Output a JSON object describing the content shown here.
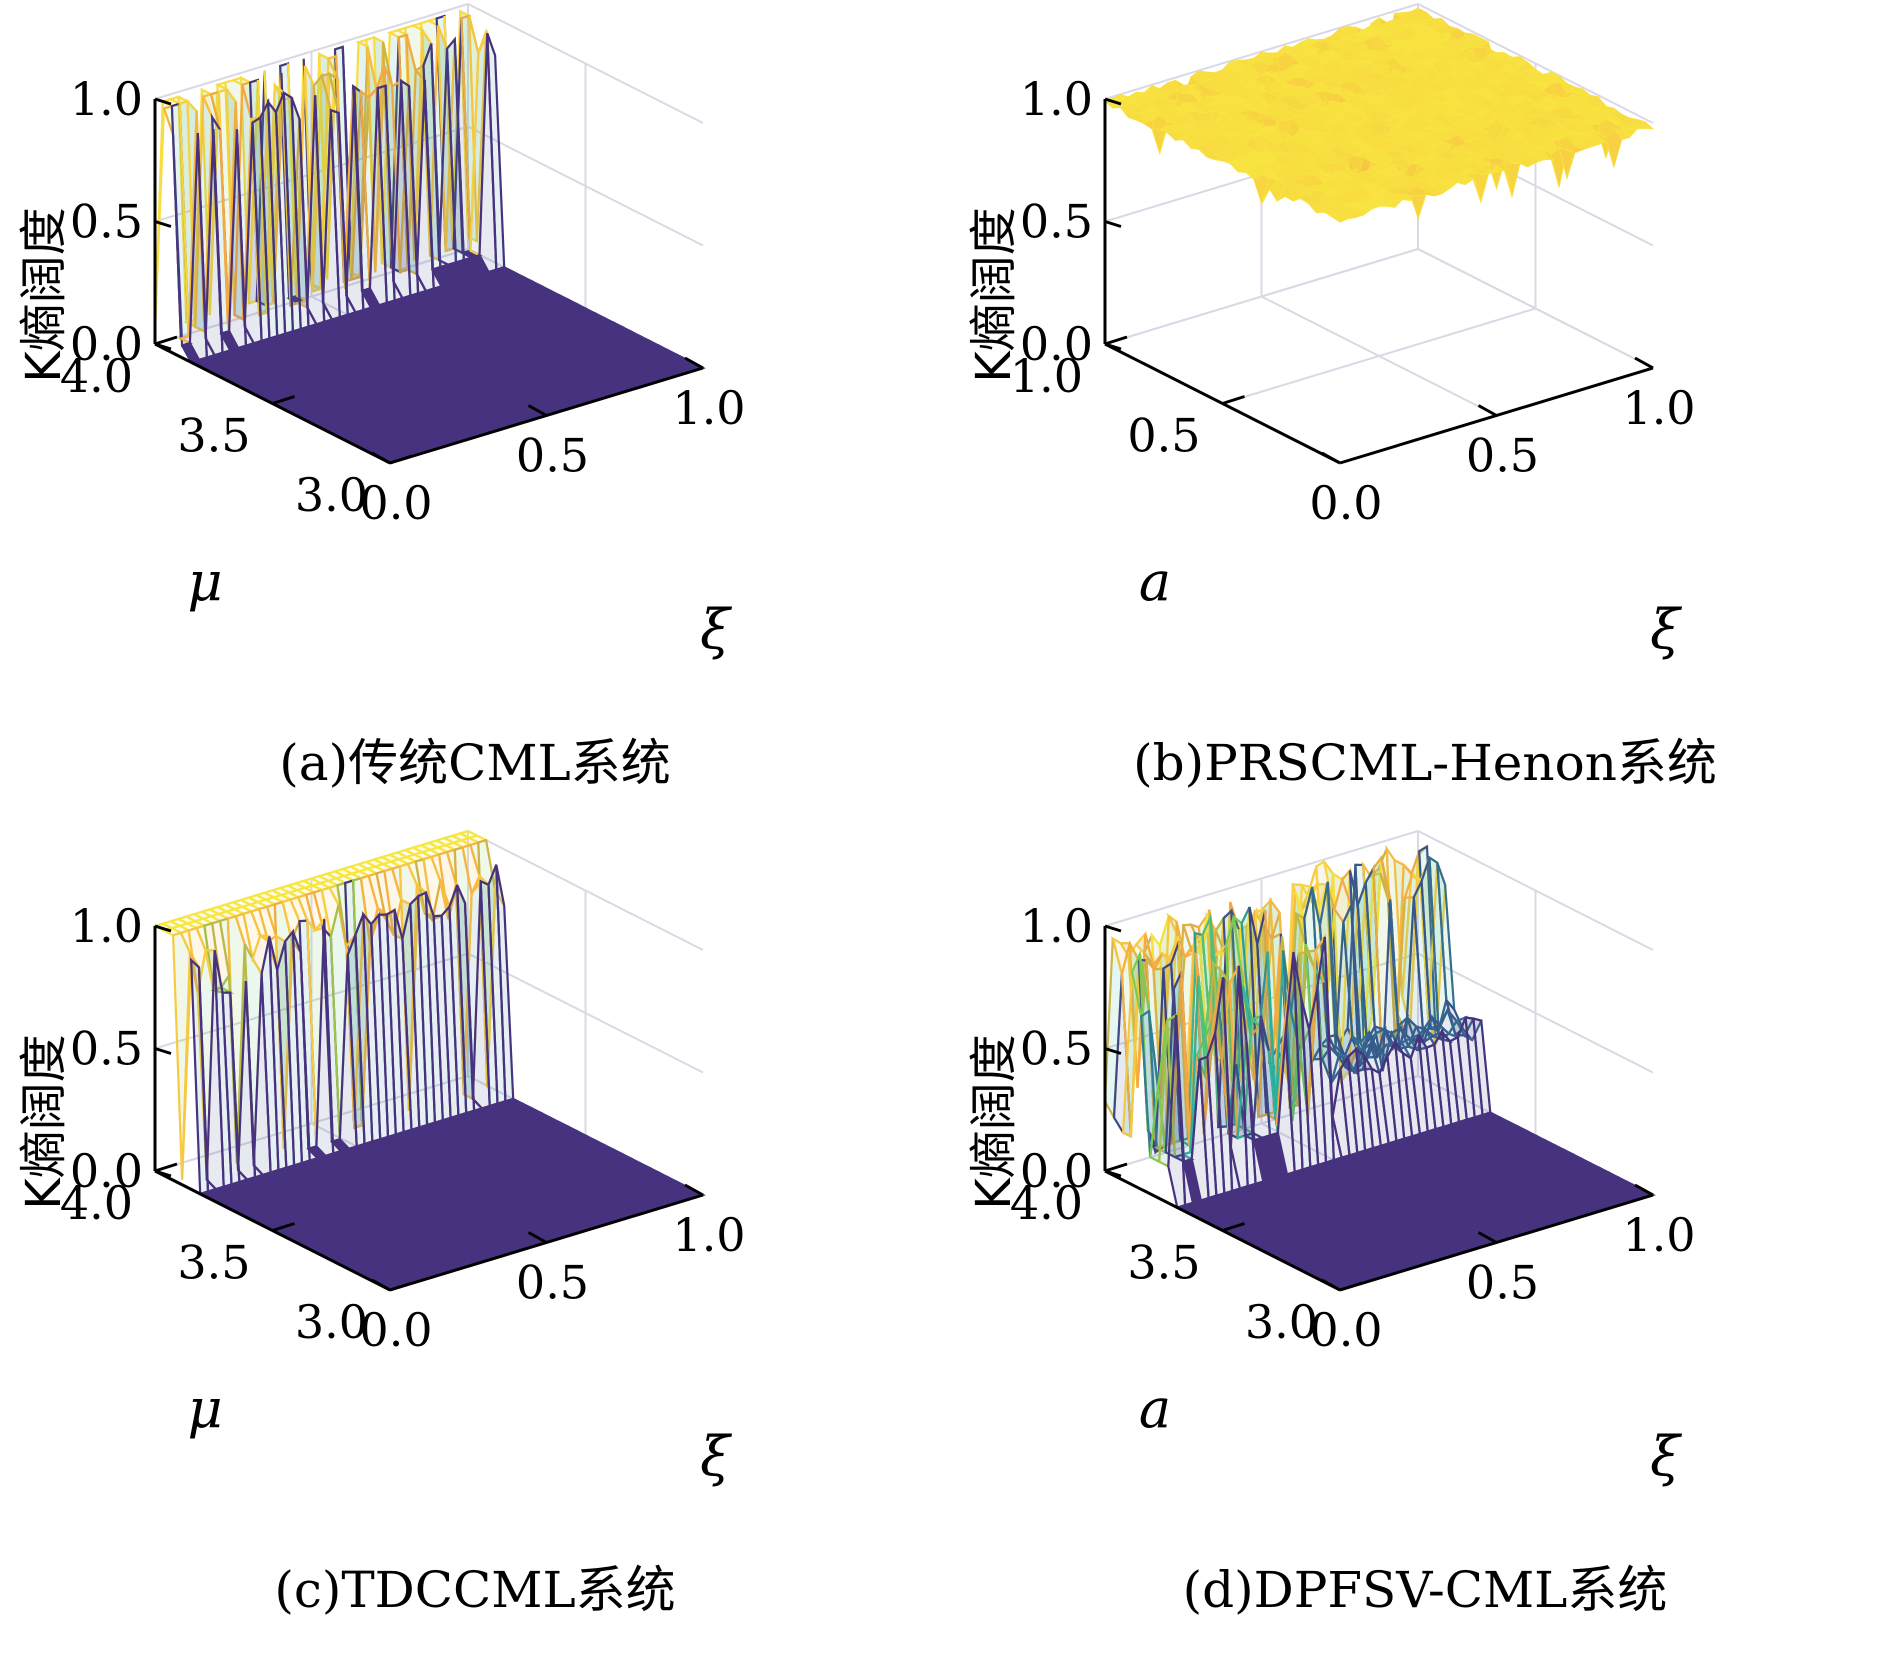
{
  "colors": {
    "low": "#46327e",
    "mid_blue": "#365c8d",
    "teal": "#2bb3a0",
    "green": "#7ccd4d",
    "orange": "#f5a742",
    "high": "#f8e640",
    "grid": "#d9d9e6"
  },
  "chart_data": [
    {
      "type": "surface",
      "caption": "(a)传统CML系统",
      "zlabel": "K熵阔度",
      "ylabel": "μ",
      "xlabel": "ξ",
      "zlim": [
        0.0,
        1.0
      ],
      "ylim": [
        3.0,
        4.0
      ],
      "xlim": [
        0.0,
        1.0
      ],
      "zticks": [
        "0.0",
        "0.5",
        "1.0"
      ],
      "yticks": [
        "3.0",
        "3.5",
        "4.0"
      ],
      "xticks": [
        "0.0",
        "0.5",
        "1.0"
      ],
      "profile": "traditional"
    },
    {
      "type": "surface",
      "caption": "(b)PRSCML-Henon系统",
      "zlabel": "K熵阔度",
      "ylabel": "a",
      "xlabel": "ξ",
      "zlim": [
        0.0,
        1.0
      ],
      "ylim": [
        0.0,
        1.0
      ],
      "xlim": [
        0.0,
        1.0
      ],
      "zticks": [
        "0.0",
        "0.5",
        "1.0"
      ],
      "yticks": [
        "0.5",
        "1.0"
      ],
      "xticks": [
        "0.0",
        "0.5",
        "1.0"
      ],
      "profile": "flat_high"
    },
    {
      "type": "surface",
      "caption": "(c)TDCCML系统",
      "zlabel": "K熵阔度",
      "ylabel": "μ",
      "xlabel": "ξ",
      "zlim": [
        0.0,
        1.0
      ],
      "ylim": [
        3.0,
        4.0
      ],
      "xlim": [
        0.0,
        1.0
      ],
      "zticks": [
        "0.0",
        "0.5",
        "1.0"
      ],
      "yticks": [
        "3.0",
        "3.5",
        "4.0"
      ],
      "xticks": [
        "0.0",
        "0.5",
        "1.0"
      ],
      "profile": "tdc"
    },
    {
      "type": "surface",
      "caption": "(d)DPFSV-CML系统",
      "zlabel": "K熵阔度",
      "ylabel": "a",
      "xlabel": "ξ",
      "zlim": [
        0.0,
        1.0
      ],
      "ylim": [
        3.0,
        4.0
      ],
      "xlim": [
        0.0,
        1.0
      ],
      "zticks": [
        "0.0",
        "0.5",
        "1.0"
      ],
      "yticks": [
        "3.0",
        "3.5",
        "4.0"
      ],
      "xticks": [
        "0.0",
        "0.5",
        "1.0"
      ],
      "profile": "dpfsv"
    }
  ]
}
